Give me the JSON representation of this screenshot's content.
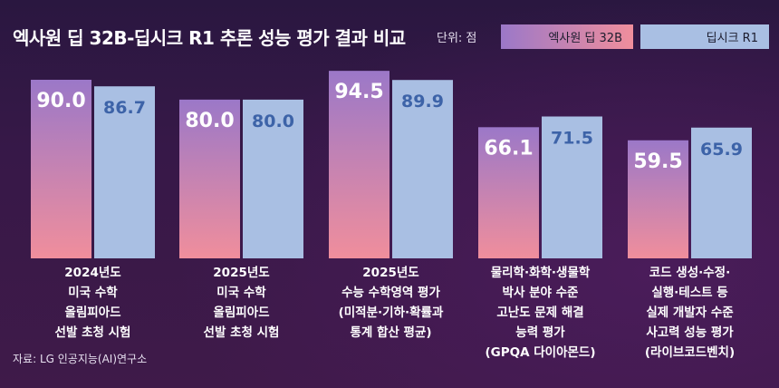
{
  "title": "엑사원 딥 32B-딥시크 R1 추론 성능 평가 결과 비교",
  "unit": "단위: 점",
  "source": "자료: LG 인공지능(AI)연구소",
  "colors": {
    "exaone_top": "#9b78c8",
    "exaone_bottom": "#f08e9c",
    "deepseek": "#a9bfe3",
    "value_light": "#ffffff",
    "value_dark": "#3d63a8"
  },
  "chart_data": {
    "type": "bar",
    "title": "엑사원 딥 32B-딥시크 R1 추론 성능 평가 결과 비교",
    "categories": [
      "2024년도\n미국 수학\n올림피아드\n선발 초청 시험",
      "2025년도\n미국 수학\n올림피아드\n선발 초청 시험",
      "2025년도\n수능 수학영역 평가\n(미적분·기하·확률과\n통계 합산 평균)",
      "물리학·화학·생물학\n박사 분야 수준\n고난도 문제 해결\n능력 평가\n(GPQA 다이아몬드)",
      "코드 생성·수정·\n실행·테스트 등\n실제 개발자 수준\n사고력 성능 평가\n(라이브코드벤치)"
    ],
    "series": [
      {
        "name": "엑사원 딥 32B",
        "values": [
          90.0,
          80.0,
          94.5,
          66.1,
          59.5
        ]
      },
      {
        "name": "딥시크 R1",
        "values": [
          86.7,
          80.0,
          89.9,
          71.5,
          65.9
        ]
      }
    ],
    "value_labels": [
      [
        "90.0",
        "80.0",
        "94.5",
        "66.1",
        "59.5"
      ],
      [
        "86.7",
        "80.0",
        "89.9",
        "71.5",
        "65.9"
      ]
    ],
    "legend": "top-right",
    "grid": false
  }
}
